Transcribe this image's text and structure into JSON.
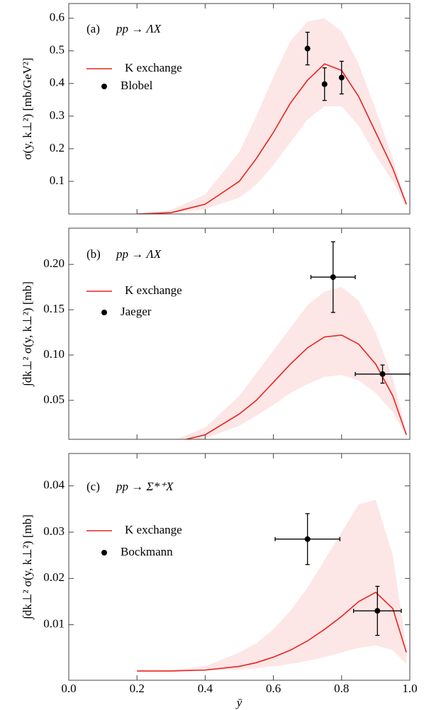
{
  "chart_data": [
    {
      "type": "line",
      "label": "(a)",
      "title": "pp → ΛX",
      "ylabel": "σ(y, k⊥²)  [mb/GeV²]",
      "xlim": [
        0,
        1
      ],
      "ylim": [
        0,
        0.645
      ],
      "yticks": [
        0.1,
        0.2,
        0.3,
        0.4,
        0.5,
        0.6
      ],
      "x": [
        0.2,
        0.3,
        0.4,
        0.5,
        0.55,
        0.6,
        0.65,
        0.7,
        0.75,
        0.8,
        0.85,
        0.9,
        0.95,
        0.99
      ],
      "series": [
        {
          "name": "K exchange",
          "color": "#e8231f",
          "values": [
            0.0,
            0.004,
            0.03,
            0.1,
            0.17,
            0.25,
            0.34,
            0.41,
            0.46,
            0.44,
            0.36,
            0.25,
            0.14,
            0.03
          ]
        }
      ],
      "band": {
        "color": "#fde6e6",
        "upper": [
          0.001,
          0.012,
          0.06,
          0.19,
          0.3,
          0.42,
          0.53,
          0.59,
          0.6,
          0.56,
          0.46,
          0.32,
          0.17,
          0.03
        ],
        "lower": [
          0,
          0.002,
          0.015,
          0.05,
          0.09,
          0.15,
          0.22,
          0.29,
          0.33,
          0.33,
          0.27,
          0.18,
          0.1,
          0.02
        ]
      },
      "points": {
        "name": "Blobel",
        "color": "#000000",
        "x": [
          0.7,
          0.75,
          0.8
        ],
        "y": [
          0.507,
          0.398,
          0.418
        ],
        "yerr": [
          0.05,
          0.05,
          0.05
        ]
      }
    },
    {
      "type": "line",
      "label": "(b)",
      "title": "pp → ΛX",
      "ylabel": "∫dk⊥² σ(y, k⊥²)  [mb]",
      "xlim": [
        0,
        1
      ],
      "ylim": [
        0.007,
        0.24
      ],
      "yticks": [
        0.05,
        {
          "value": 0.1,
          "label": "0.10"
        },
        0.15,
        {
          "value": 0.2,
          "label": "0.20"
        }
      ],
      "x": [
        0.2,
        0.3,
        0.4,
        0.5,
        0.55,
        0.6,
        0.65,
        0.7,
        0.75,
        0.8,
        0.85,
        0.9,
        0.95,
        0.99
      ],
      "series": [
        {
          "name": "K exchange",
          "color": "#e8231f",
          "values": [
            0.0,
            0.003,
            0.012,
            0.035,
            0.05,
            0.07,
            0.09,
            0.108,
            0.12,
            0.122,
            0.112,
            0.09,
            0.055,
            0.012
          ]
        }
      ],
      "band": {
        "color": "#fde6e6",
        "upper": [
          0,
          0.005,
          0.02,
          0.055,
          0.08,
          0.105,
          0.13,
          0.155,
          0.17,
          0.175,
          0.16,
          0.125,
          0.075,
          0.015
        ],
        "lower": [
          0,
          0.002,
          0.008,
          0.022,
          0.033,
          0.045,
          0.058,
          0.068,
          0.076,
          0.078,
          0.072,
          0.058,
          0.037,
          0.01
        ]
      },
      "points": {
        "name": "Jaeger",
        "color": "#000000",
        "x": [
          0.775,
          0.92
        ],
        "y": [
          0.186,
          0.079
        ],
        "yerr": [
          0.039,
          0.01
        ],
        "xerr": [
          0.065,
          0.08
        ]
      }
    },
    {
      "type": "line",
      "label": "(c)",
      "title": "pp → Σ*⁺X",
      "ylabel": "∫dk⊥² σ(y, k⊥²)  [mb]",
      "xlabel": "ȳ",
      "xlim": [
        0,
        1
      ],
      "xticks": [
        {
          "value": 0,
          "label": "0.0"
        },
        0.2,
        0.4,
        0.6,
        0.8,
        {
          "value": 1,
          "label": "1.0"
        }
      ],
      "ylim": [
        -0.002,
        0.047
      ],
      "yticks": [
        0.01,
        0.02,
        0.03,
        0.04
      ],
      "x": [
        0.2,
        0.3,
        0.4,
        0.5,
        0.55,
        0.6,
        0.65,
        0.7,
        0.75,
        0.8,
        0.85,
        0.9,
        0.95,
        0.99
      ],
      "series": [
        {
          "name": "K exchange",
          "color": "#e8231f",
          "values": [
            0,
            0,
            0.0002,
            0.001,
            0.0018,
            0.003,
            0.0045,
            0.0065,
            0.009,
            0.0118,
            0.015,
            0.017,
            0.0135,
            0.004
          ]
        }
      ],
      "band": {
        "color": "#fde6e6",
        "upper": [
          0,
          0.0002,
          0.001,
          0.004,
          0.006,
          0.009,
          0.013,
          0.018,
          0.024,
          0.03,
          0.036,
          0.037,
          0.025,
          0.005
        ],
        "lower": [
          0,
          0,
          0.0001,
          0.0003,
          0.0006,
          0.001,
          0.0015,
          0.0022,
          0.003,
          0.004,
          0.005,
          0.0055,
          0.0045,
          0.0015
        ]
      },
      "points": {
        "name": "Bockmann",
        "color": "#000000",
        "x": [
          0.7,
          0.905
        ],
        "y": [
          0.0285,
          0.013
        ],
        "yerr": [
          0.0055,
          0.0053
        ],
        "xerr": [
          0.095,
          0.07
        ]
      }
    }
  ]
}
